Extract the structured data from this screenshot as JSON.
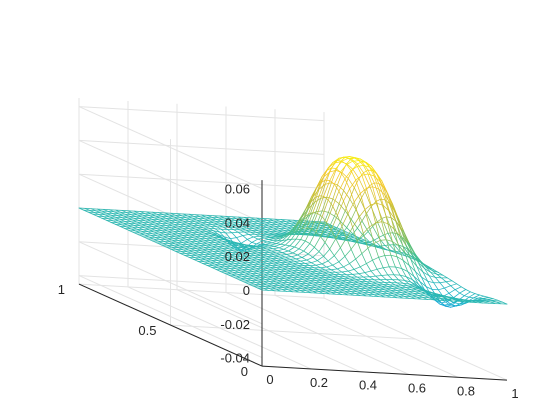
{
  "chart_data": {
    "type": "surface",
    "title": "",
    "xlabel": "",
    "ylabel": "",
    "zlabel": "",
    "grid": true,
    "colormap": [
      "#3e26a8",
      "#2f6ff9",
      "#15b1d0",
      "#49c18d",
      "#b8bd3b",
      "#f3c82d",
      "#f9fb0e"
    ],
    "mesh_default_color": "#2bbfd8",
    "xlim": [
      0,
      1
    ],
    "ylim": [
      0,
      1
    ],
    "zlim": [
      -0.045,
      0.065
    ],
    "x_ticks": [
      "0",
      "0.2",
      "0.4",
      "0.6",
      "0.8",
      "1"
    ],
    "y_ticks": [
      "0",
      "0.5",
      "1"
    ],
    "z_ticks": [
      "-0.04",
      "-0.02",
      "0",
      "0.02",
      "0.04",
      "0.06"
    ],
    "surface_description": "Flat sheet at z=0 over most of the domain; a raised plateau bump peaking near z=0.06 centered at x≈0.75, y≈0.5; small negative dips (≈-0.01) around the bump edges near x≈0.9, y≈0.2 and near x≈0.45, y≈0.7",
    "peak": {
      "x": 0.75,
      "y": 0.5,
      "z": 0.06
    },
    "grid_resolution": 41
  }
}
